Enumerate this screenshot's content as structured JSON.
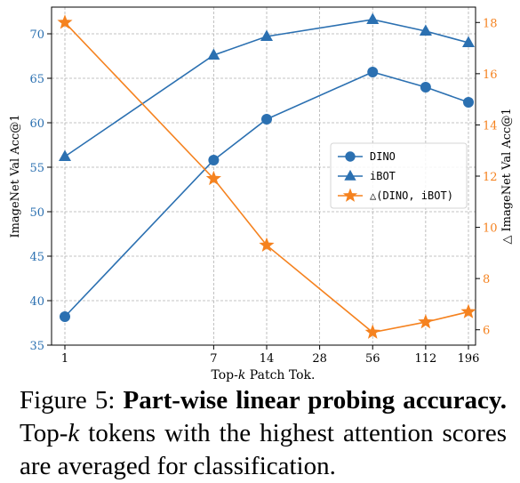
{
  "chart_data": {
    "type": "line",
    "xlabel": "Top-k Patch Tok.",
    "xlabel_parts": {
      "pre": "Top-",
      "k": "k",
      "post": " Patch Tok."
    },
    "x_ticks": [
      "1",
      "7",
      "14",
      "28",
      "56",
      "112",
      "196"
    ],
    "x_scale": "log",
    "ylabel_left": "ImageNet Val Acc@1",
    "ylabel_right": "△ ImageNet Val Acc@1",
    "ylim_left": [
      35,
      73
    ],
    "ylim_right": [
      5.4,
      18.6
    ],
    "y_ticks_left": [
      "35",
      "40",
      "45",
      "50",
      "55",
      "60",
      "65",
      "70"
    ],
    "y_ticks_right": [
      "6",
      "8",
      "10",
      "12",
      "14",
      "16",
      "18"
    ],
    "grid": true,
    "legend_position": "center-right",
    "series": [
      {
        "name": "DINO",
        "axis": "left",
        "marker": "circle",
        "color": "#2b70b1",
        "x": [
          1,
          7,
          14,
          56,
          112,
          196
        ],
        "y": [
          38.2,
          55.8,
          60.4,
          65.7,
          64.0,
          62.3
        ]
      },
      {
        "name": "iBOT",
        "axis": "left",
        "marker": "triangle",
        "color": "#2b70b1",
        "x": [
          1,
          7,
          14,
          56,
          112,
          196
        ],
        "y": [
          56.2,
          67.6,
          69.7,
          71.6,
          70.3,
          69.0
        ]
      },
      {
        "name": "△(DINO, iBOT)",
        "axis": "right",
        "marker": "star",
        "color": "#f5821f",
        "x": [
          1,
          7,
          14,
          56,
          112,
          196
        ],
        "y": [
          18.0,
          11.9,
          9.3,
          5.9,
          6.3,
          6.7
        ]
      }
    ]
  },
  "caption": {
    "label": "Figure 5: ",
    "title": "Part-wise linear probing accuracy.",
    "text_pre": " Top-",
    "k": "k",
    "text_post": " tokens with the highest attention scores are averaged for classification."
  }
}
